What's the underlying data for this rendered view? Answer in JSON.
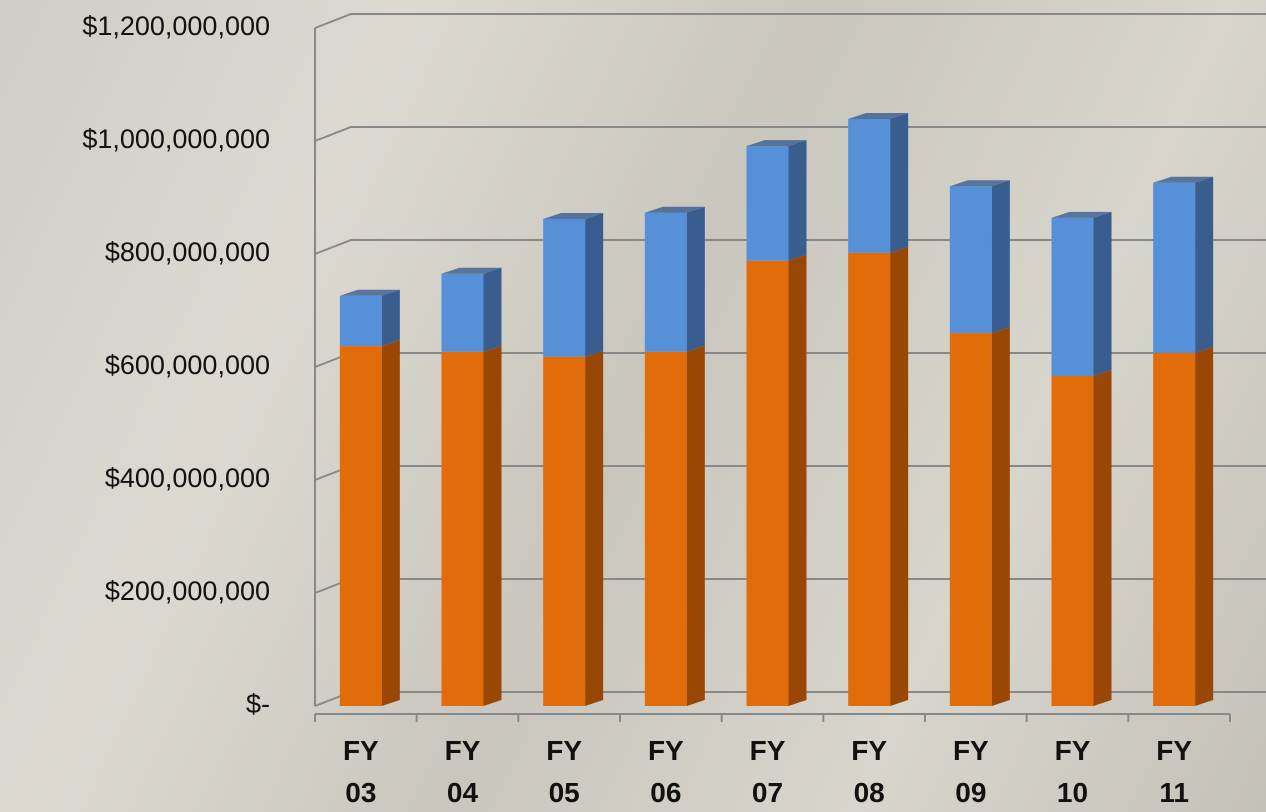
{
  "chart_data": {
    "type": "bar3d_stacked",
    "categories": [
      "FY 03",
      "FY 04",
      "FY 05",
      "FY 06",
      "FY 07",
      "FY 08",
      "FY 09",
      "FY 10",
      "FY 11"
    ],
    "series": [
      {
        "color": "#e36c0a",
        "side_color": "#9a4706",
        "values": [
          637000000,
          627000000,
          618000000,
          627000000,
          788000000,
          802000000,
          660000000,
          584000000,
          625000000
        ]
      },
      {
        "color": "#5590d8",
        "side_color": "#385d8e",
        "values": [
          89000000,
          138000000,
          244000000,
          246000000,
          203000000,
          237000000,
          260000000,
          280000000,
          301000000
        ]
      }
    ],
    "ylim": [
      0,
      1200000000
    ],
    "yticks": [
      {
        "value": 0,
        "label": "$-"
      },
      {
        "value": 200000000,
        "label": "$200,000,000"
      },
      {
        "value": 400000000,
        "label": "$400,000,000"
      },
      {
        "value": 600000000,
        "label": "$600,000,000"
      },
      {
        "value": 800000000,
        "label": "$800,000,000"
      },
      {
        "value": 1000000000,
        "label": "$1,000,000,000"
      },
      {
        "value": 1200000000,
        "label": "$1,200,000,000"
      }
    ],
    "grid": true
  }
}
